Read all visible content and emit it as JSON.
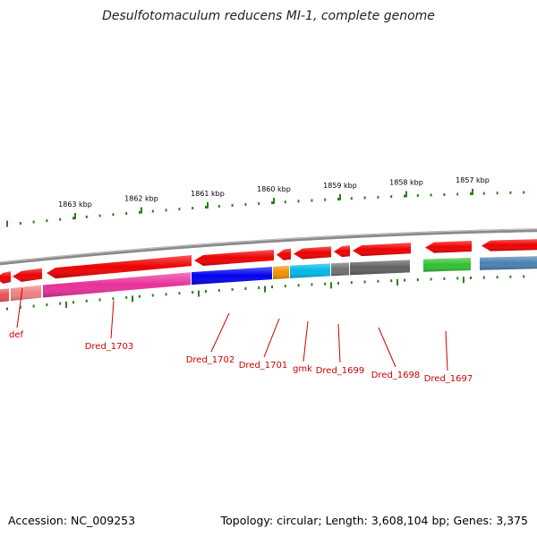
{
  "title": "Desulfotomaculum reducens MI-1, complete genome",
  "footer": {
    "accession": "Accession: NC_009253",
    "summary": "Topology: circular; Length: 3,608,104 bp; Genes: 3,375"
  },
  "colors": {
    "backbone": "#8a8a8a",
    "gene_arrow": "#ee0000",
    "scale_tick": "#2e7d1f",
    "label_red": "#cc0000"
  },
  "scale_labels": [
    "1863 kbp",
    "1862 kbp",
    "1861 kbp",
    "1860 kbp",
    "1859 kbp",
    "1858 kbp",
    "1857 kbp"
  ],
  "genes": [
    {
      "name": "def",
      "color": "#f08080"
    },
    {
      "name": "Dred_1703",
      "color": "#e8309a"
    },
    {
      "name": "Dred_1702",
      "color": "#0000ee"
    },
    {
      "name": "Dred_1701",
      "color": "#f09000"
    },
    {
      "name": "gmk",
      "color": "#00b8e8"
    },
    {
      "name": "Dred_1699",
      "color": "#707070"
    },
    {
      "name": "Dred_1698",
      "color": "#606060"
    },
    {
      "name": "Dred_1697",
      "color": "#30c030"
    },
    {
      "name": "",
      "color": "#4a80b0"
    }
  ]
}
